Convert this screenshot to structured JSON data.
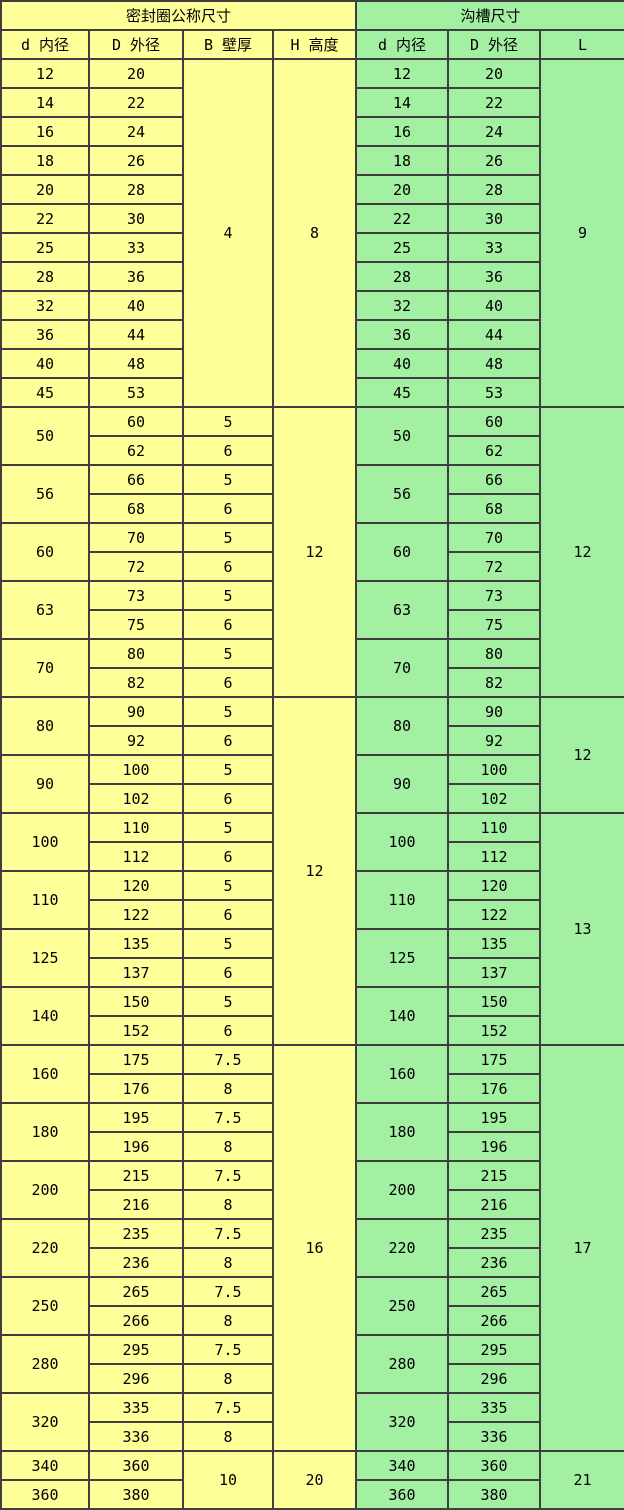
{
  "table": {
    "section_headers": [
      {
        "label": "密封圈公称尺寸"
      },
      {
        "label": "沟槽尺寸"
      }
    ],
    "column_headers": [
      "d 内径",
      "D 外径",
      "B 壁厚",
      "H 高度",
      "d 内径",
      "D 外径",
      "L"
    ],
    "colors": {
      "seal_section_bg": "#FFFF99",
      "groove_section_bg": "#A3F0A3",
      "border": "#3F3F3F",
      "text": "#000000"
    },
    "rows": [
      [
        "12",
        "20",
        {
          "t": "4",
          "rs": 12
        },
        {
          "t": "8",
          "rs": 12
        },
        "12",
        "20",
        {
          "t": "9",
          "rs": 12
        }
      ],
      [
        "14",
        "22",
        "14",
        "22"
      ],
      [
        "16",
        "24",
        "16",
        "24"
      ],
      [
        "18",
        "26",
        "18",
        "26"
      ],
      [
        "20",
        "28",
        "20",
        "28"
      ],
      [
        "22",
        "30",
        "22",
        "30"
      ],
      [
        "25",
        "33",
        "25",
        "33"
      ],
      [
        "28",
        "36",
        "28",
        "36"
      ],
      [
        "32",
        "40",
        "32",
        "40"
      ],
      [
        "36",
        "44",
        "36",
        "44"
      ],
      [
        "40",
        "48",
        "40",
        "48"
      ],
      [
        "45",
        "53",
        "45",
        "53"
      ],
      [
        {
          "t": "50",
          "rs": 2
        },
        "60",
        "5",
        {
          "t": "12",
          "rs": 10
        },
        {
          "t": "50",
          "rs": 2
        },
        "60",
        {
          "t": "12",
          "rs": 10
        }
      ],
      [
        "62",
        "6",
        "62"
      ],
      [
        {
          "t": "56",
          "rs": 2
        },
        "66",
        "5",
        {
          "t": "56",
          "rs": 2
        },
        "66"
      ],
      [
        "68",
        "6",
        "68"
      ],
      [
        {
          "t": "60",
          "rs": 2
        },
        "70",
        "5",
        {
          "t": "60",
          "rs": 2
        },
        "70"
      ],
      [
        "72",
        "6",
        "72"
      ],
      [
        {
          "t": "63",
          "rs": 2
        },
        "73",
        "5",
        {
          "t": "63",
          "rs": 2
        },
        "73"
      ],
      [
        "75",
        "6",
        "75"
      ],
      [
        {
          "t": "70",
          "rs": 2
        },
        "80",
        "5",
        {
          "t": "70",
          "rs": 2
        },
        "80"
      ],
      [
        "82",
        "6",
        "82"
      ],
      [
        {
          "t": "80",
          "rs": 2
        },
        "90",
        "5",
        {
          "t": "12",
          "rs": 12
        },
        {
          "t": "80",
          "rs": 2
        },
        "90",
        {
          "t": "12",
          "rs": 4
        }
      ],
      [
        "92",
        "6",
        "92"
      ],
      [
        {
          "t": "90",
          "rs": 2
        },
        "100",
        "5",
        {
          "t": "90",
          "rs": 2
        },
        "100"
      ],
      [
        "102",
        "6",
        "102"
      ],
      [
        {
          "t": "100",
          "rs": 2
        },
        "110",
        "5",
        {
          "t": "100",
          "rs": 2
        },
        "110",
        {
          "t": "13",
          "rs": 8
        }
      ],
      [
        "112",
        "6",
        "112"
      ],
      [
        {
          "t": "110",
          "rs": 2
        },
        "120",
        "5",
        {
          "t": "110",
          "rs": 2
        },
        "120"
      ],
      [
        "122",
        "6",
        "122"
      ],
      [
        {
          "t": "125",
          "rs": 2
        },
        "135",
        "5",
        {
          "t": "125",
          "rs": 2
        },
        "135"
      ],
      [
        "137",
        "6",
        "137"
      ],
      [
        {
          "t": "140",
          "rs": 2
        },
        "150",
        "5",
        {
          "t": "140",
          "rs": 2
        },
        "150"
      ],
      [
        "152",
        "6",
        "152"
      ],
      [
        {
          "t": "160",
          "rs": 2
        },
        "175",
        "7.5",
        {
          "t": "16",
          "rs": 14
        },
        {
          "t": "160",
          "rs": 2
        },
        "175",
        {
          "t": "17",
          "rs": 14
        }
      ],
      [
        "176",
        "8",
        "176"
      ],
      [
        {
          "t": "180",
          "rs": 2
        },
        "195",
        "7.5",
        {
          "t": "180",
          "rs": 2
        },
        "195"
      ],
      [
        "196",
        "8",
        "196"
      ],
      [
        {
          "t": "200",
          "rs": 2
        },
        "215",
        "7.5",
        {
          "t": "200",
          "rs": 2
        },
        "215"
      ],
      [
        "216",
        "8",
        "216"
      ],
      [
        {
          "t": "220",
          "rs": 2
        },
        "235",
        "7.5",
        {
          "t": "220",
          "rs": 2
        },
        "235"
      ],
      [
        "236",
        "8",
        "236"
      ],
      [
        {
          "t": "250",
          "rs": 2
        },
        "265",
        "7.5",
        {
          "t": "250",
          "rs": 2
        },
        "265"
      ],
      [
        "266",
        "8",
        "266"
      ],
      [
        {
          "t": "280",
          "rs": 2
        },
        "295",
        "7.5",
        {
          "t": "280",
          "rs": 2
        },
        "295"
      ],
      [
        "296",
        "8",
        "296"
      ],
      [
        {
          "t": "320",
          "rs": 2
        },
        "335",
        "7.5",
        {
          "t": "320",
          "rs": 2
        },
        "335"
      ],
      [
        "336",
        "8",
        "336"
      ],
      [
        "340",
        "360",
        {
          "t": "10",
          "rs": 2
        },
        {
          "t": "20",
          "rs": 2
        },
        "340",
        "360",
        {
          "t": "21",
          "rs": 2
        }
      ],
      [
        "360",
        "380",
        "360",
        "380"
      ]
    ]
  }
}
